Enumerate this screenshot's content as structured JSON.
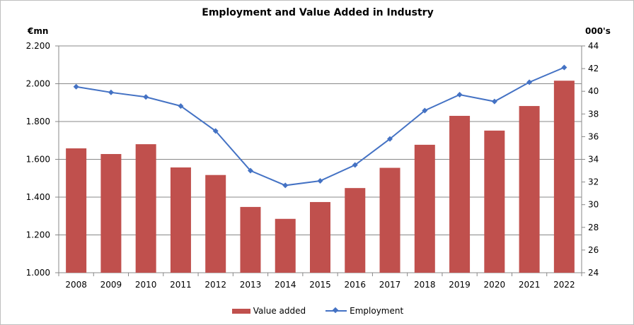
{
  "chart_data": {
    "type": "bar",
    "title": "Employment and Value Added in Industry",
    "left_axis_label": "€mn",
    "right_axis_label": "000's",
    "categories": [
      "2008",
      "2009",
      "2010",
      "2011",
      "2012",
      "2013",
      "2014",
      "2015",
      "2016",
      "2017",
      "2018",
      "2019",
      "2020",
      "2021",
      "2022"
    ],
    "series": [
      {
        "name": "Value added",
        "type": "bar",
        "axis": "left",
        "color": "#c0504d",
        "values": [
          1658,
          1628,
          1680,
          1557,
          1517,
          1348,
          1285,
          1374,
          1448,
          1555,
          1677,
          1830,
          1752,
          1882,
          2016
        ]
      },
      {
        "name": "Employment",
        "type": "line",
        "axis": "right",
        "color": "#4472c4",
        "values": [
          40.4,
          39.9,
          39.5,
          38.7,
          36.5,
          33.0,
          31.7,
          32.1,
          33.5,
          35.8,
          38.3,
          39.7,
          39.1,
          40.8,
          42.1
        ]
      }
    ],
    "y_left": {
      "min": 1000,
      "max": 2200,
      "step": 200,
      "tick_labels": [
        "1.000",
        "1.200",
        "1.400",
        "1.600",
        "1.800",
        "2.000",
        "2.200"
      ]
    },
    "y_right": {
      "min": 24,
      "max": 44,
      "step": 2,
      "tick_labels": [
        "24",
        "26",
        "28",
        "30",
        "32",
        "34",
        "36",
        "38",
        "40",
        "42",
        "44"
      ]
    },
    "grid": true,
    "legend_position": "bottom"
  }
}
